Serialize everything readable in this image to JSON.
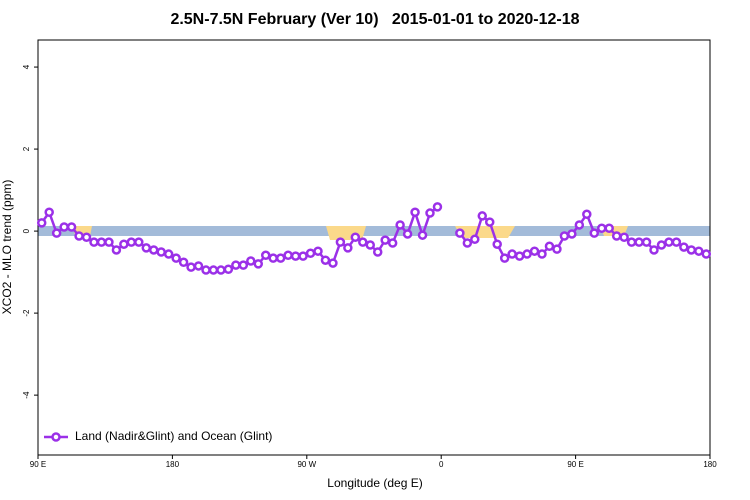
{
  "chart_data": {
    "type": "line",
    "title": "2.5N-7.5N February (Ver 10)   2015-01-01 to 2020-12-18",
    "xlabel": "Longitude (deg E)",
    "ylabel": "XCO2 - MLO trend (ppm)",
    "x": [
      92.5,
      97.5,
      102.5,
      107.5,
      112.5,
      117.5,
      122.5,
      127.5,
      132.5,
      137.5,
      142.5,
      147.5,
      152.5,
      157.5,
      162.5,
      167.5,
      172.5,
      177.5,
      182.5,
      187.5,
      192.5,
      197.5,
      202.5,
      207.5,
      212.5,
      217.5,
      222.5,
      227.5,
      232.5,
      237.5,
      242.5,
      247.5,
      252.5,
      257.5,
      262.5,
      267.5,
      272.5,
      277.5,
      282.5,
      287.5,
      292.5,
      297.5,
      302.5,
      307.5,
      312.5,
      317.5,
      322.5,
      327.5,
      332.5,
      337.5,
      342.5,
      347.5,
      352.5,
      357.5,
      362.5,
      367.5,
      372.5,
      377.5,
      382.5,
      387.5,
      392.5,
      397.5,
      402.5,
      407.5,
      412.5,
      417.5,
      422.5,
      427.5,
      432.5,
      437.5,
      442.5,
      447.5,
      452.5,
      457.5,
      462.5,
      467.5,
      472.5,
      477.5,
      482.5,
      487.5,
      492.5,
      497.5,
      502.5,
      507.5,
      512.5,
      517.5,
      522.5,
      527.5,
      532.5,
      537.5
    ],
    "series": [
      {
        "name": "Land (Nadir&Glint) and Ocean (Glint)",
        "color": "#9b30e8",
        "values": [
          0.2,
          0.46,
          -0.05,
          0.1,
          0.1,
          -0.12,
          -0.15,
          -0.27,
          -0.27,
          -0.27,
          -0.46,
          -0.32,
          -0.27,
          -0.27,
          -0.41,
          -0.46,
          -0.51,
          -0.56,
          -0.66,
          -0.76,
          -0.88,
          -0.85,
          -0.95,
          -0.95,
          -0.95,
          -0.93,
          -0.83,
          -0.83,
          -0.73,
          -0.8,
          -0.59,
          -0.66,
          -0.66,
          -0.59,
          -0.61,
          -0.61,
          -0.54,
          -0.49,
          -0.71,
          -0.78,
          -0.27,
          -0.41,
          -0.15,
          -0.27,
          -0.34,
          -0.51,
          -0.22,
          -0.29,
          0.15,
          -0.07,
          0.46,
          -0.1,
          0.44,
          0.59,
          null,
          null,
          -0.05,
          -0.29,
          -0.2,
          0.37,
          0.22,
          -0.32,
          -0.66,
          -0.56,
          -0.61,
          -0.56,
          -0.49,
          -0.56,
          -0.37,
          -0.44,
          -0.12,
          -0.07,
          0.15,
          0.41,
          -0.05,
          0.07,
          0.07,
          -0.12,
          -0.15,
          -0.27,
          -0.27,
          -0.27,
          -0.46,
          -0.34,
          -0.27,
          -0.27,
          -0.39,
          -0.46,
          -0.49,
          -0.56
        ]
      }
    ],
    "xlim": [
      90,
      540
    ],
    "xticks": [
      {
        "value": 90,
        "label": "90 E"
      },
      180,
      {
        "value": 270,
        "label": "90 W"
      },
      {
        "value": 360,
        "label": "0"
      },
      {
        "value": 450,
        "label": "90 E"
      },
      {
        "value": 540,
        "label": "180"
      }
    ],
    "ylim": [
      -5.46,
      4.66
    ],
    "yticks": [
      -4,
      -2,
      0,
      2,
      4
    ],
    "legend": "bottom-left"
  }
}
